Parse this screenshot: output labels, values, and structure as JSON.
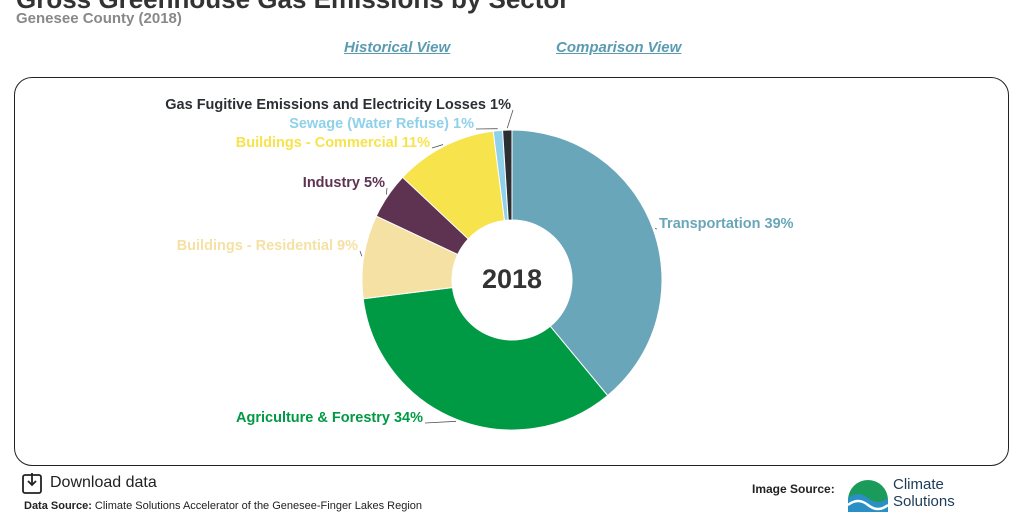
{
  "header": {
    "title": "Gross Greenhouse Gas Emissions by Sector",
    "subtitle": "Genesee County (2018)"
  },
  "links": [
    "Historical View",
    "Comparison View"
  ],
  "chart_data": {
    "type": "pie",
    "donut": true,
    "center_label": "2018",
    "categories": [
      "Transportation",
      "Agriculture & Forestry",
      "Buildings - Residential",
      "Industry",
      "Buildings - Commercial",
      "Sewage (Water Refuse)",
      "Gas Fugitive Emissions and Electricity Losses"
    ],
    "values": [
      39,
      34,
      9,
      5,
      11,
      1,
      1
    ],
    "value_labels": [
      "39%",
      "34%",
      "9%",
      "5%",
      "11%",
      "1%",
      "1%"
    ],
    "colors": [
      "#6aa6b9",
      "#009a44",
      "#f5e1a4",
      "#5e3352",
      "#f7e34b",
      "#8fd1ea",
      "#2b2f33"
    ]
  },
  "footer": {
    "download": "Download data",
    "data_source_label": "Data Source:",
    "data_source": "Climate Solutions Accelerator of the Genesee-Finger Lakes Region",
    "image_source_label": "Image Source:",
    "logo": [
      "Climate",
      "Solutions"
    ]
  }
}
